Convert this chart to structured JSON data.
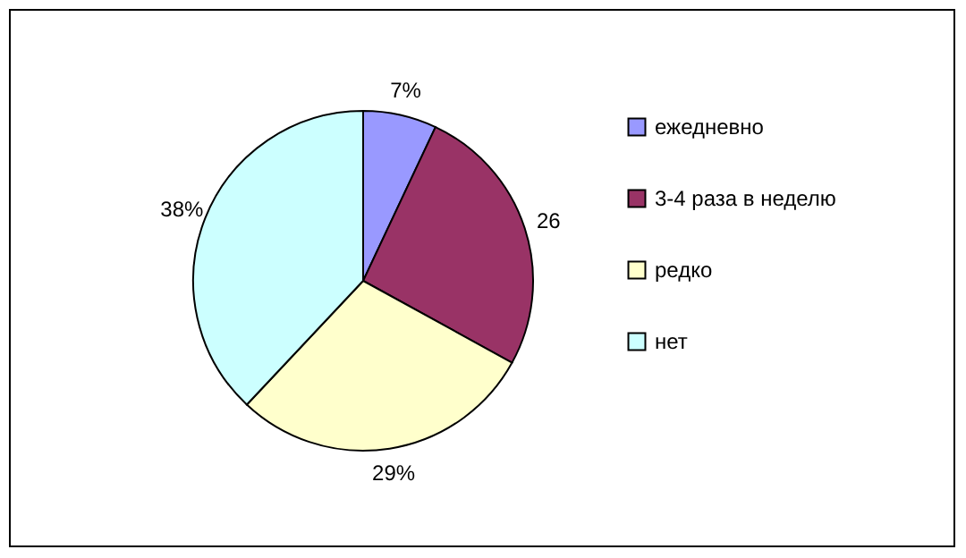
{
  "chart_data": {
    "type": "pie",
    "categories": [
      "ежедневно",
      "3-4 раза в неделю",
      "редко",
      "нет"
    ],
    "values": [
      7,
      26,
      29,
      38
    ],
    "colors": [
      "#9999ff",
      "#993366",
      "#ffffcc",
      "#ccffff"
    ],
    "value_labels": [
      "7%",
      "26",
      "29%",
      "38%"
    ],
    "legend": "right"
  }
}
